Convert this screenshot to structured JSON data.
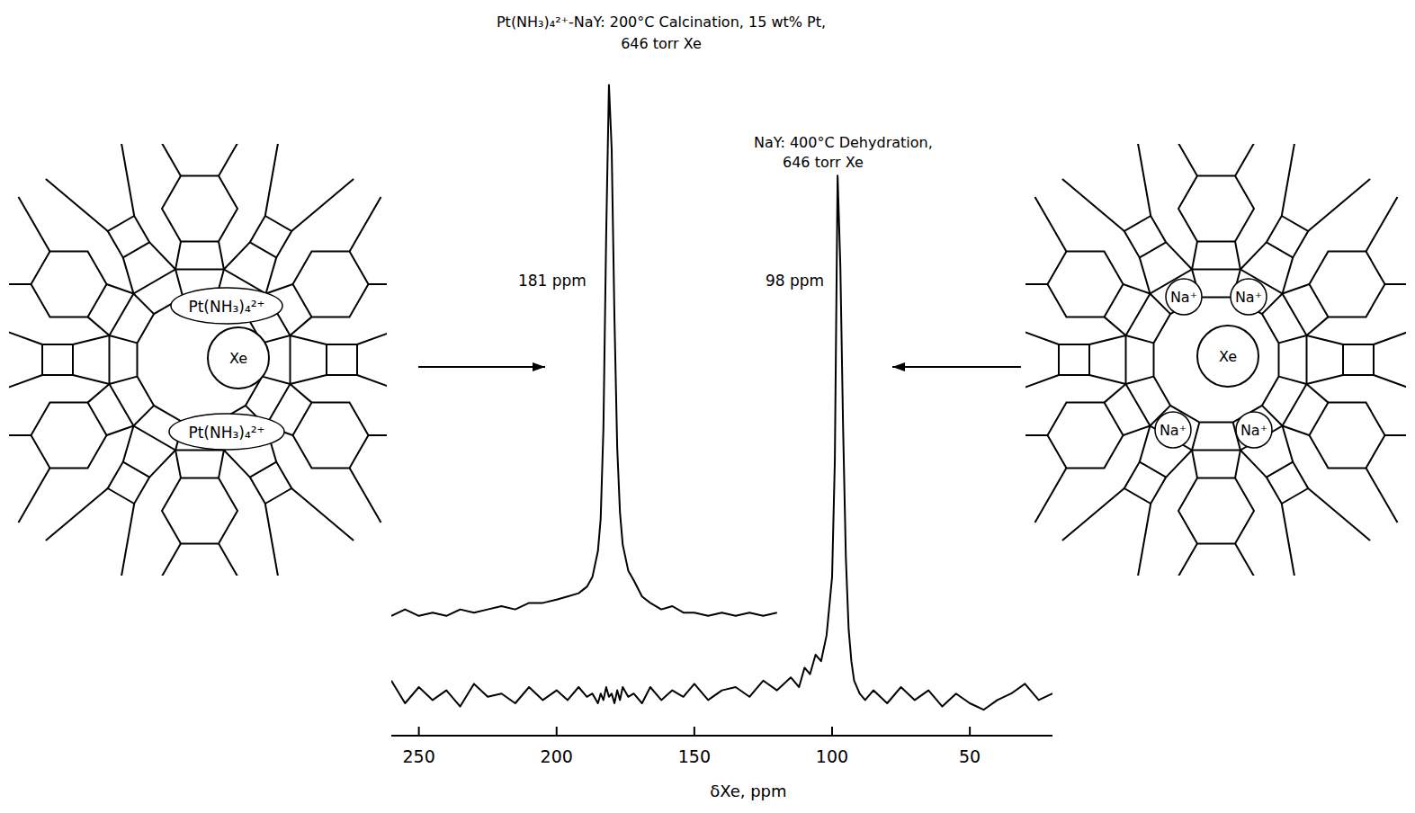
{
  "chart_data": {
    "type": "line",
    "x_label": "δXe, ppm",
    "xlim": [
      260,
      20
    ],
    "xticks": [
      250,
      200,
      150,
      100,
      50
    ],
    "ylim": [
      0,
      100
    ],
    "tick_labels": "x",
    "grid": false,
    "color": "#000000",
    "x": [
      260,
      255,
      250,
      245,
      240,
      235,
      230,
      225,
      220,
      215,
      210,
      205,
      200,
      196,
      192,
      189,
      187,
      185,
      184,
      183,
      182,
      181,
      180,
      179,
      178,
      177,
      176,
      174,
      172,
      169,
      166,
      162,
      158,
      154,
      150,
      145,
      140,
      135,
      130,
      125,
      120,
      115,
      112,
      110,
      108,
      106,
      104,
      102,
      100,
      99,
      98,
      97,
      96,
      95,
      94,
      93,
      92,
      90,
      88,
      85,
      80,
      75,
      70,
      65,
      60,
      55,
      50,
      45,
      40,
      35,
      30,
      25,
      20
    ],
    "series": [
      {
        "label_lines": [
          "Pt(NH₃)₄²⁺-NaY:  200°C Calcination, 15 wt% Pt,",
          "646 torr Xe"
        ],
        "annotation": "181 ppm",
        "color": "#000000",
        "values": [
          16,
          17,
          16,
          16.5,
          16,
          17,
          16.5,
          17,
          17.5,
          17,
          18,
          18,
          18.5,
          19,
          19.5,
          20.5,
          22,
          26,
          31,
          45,
          75,
          98,
          88,
          62,
          42,
          32,
          27,
          23,
          21.5,
          19,
          18,
          17,
          17.5,
          16.5,
          16.5,
          16,
          16.5,
          16,
          16.5,
          16,
          16.5,
          null,
          null,
          null,
          null,
          null,
          null,
          null,
          null,
          null,
          null,
          null,
          null,
          null,
          null,
          null,
          null,
          null,
          null,
          null,
          null,
          null,
          null,
          null,
          null,
          null,
          null,
          null,
          null,
          null,
          null,
          null,
          null
        ]
      },
      {
        "label_lines": [
          "NaY:  400°C Dehydration,",
          "646 torr Xe"
        ],
        "annotation": "98 ppm",
        "color": "#000000",
        "values": [
          6,
          2.5,
          5,
          3,
          4.5,
          2,
          5.5,
          3.5,
          4,
          2.5,
          5,
          3,
          4.5,
          3,
          5,
          3.5,
          4,
          2.5,
          4,
          3,
          5,
          3.5,
          4,
          2.5,
          4.5,
          3,
          5,
          3.5,
          4,
          2.5,
          5,
          3,
          4.5,
          3.5,
          5.5,
          3,
          4.5,
          5,
          3.5,
          6,
          4.5,
          6.5,
          5,
          8,
          7,
          10,
          9,
          13,
          22,
          40,
          84,
          70,
          45,
          25,
          14,
          9,
          6,
          4,
          3,
          4.5,
          2.5,
          5,
          3,
          4.5,
          2,
          4,
          2.5,
          1.5,
          3,
          4,
          5.5,
          3,
          4
        ]
      }
    ]
  },
  "diagrams": {
    "left": {
      "labels": [
        "Pt(NH₃)₄²⁺",
        "Xe",
        "Pt(NH₃)₄²⁺"
      ]
    },
    "right": {
      "labels": [
        "Na⁺",
        "Na⁺",
        "Xe",
        "Na⁺",
        "Na⁺"
      ]
    }
  }
}
